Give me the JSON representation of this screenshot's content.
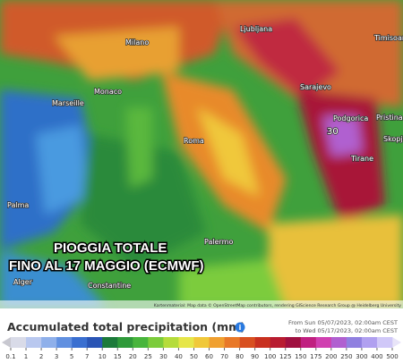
{
  "map": {
    "cities": [
      {
        "label": "Milano"
      },
      {
        "label": "Monaco"
      },
      {
        "label": "Marseille"
      },
      {
        "label": "Roma"
      },
      {
        "label": "Palermo"
      },
      {
        "label": "Palma"
      },
      {
        "label": "Alger"
      },
      {
        "label": "Constantine"
      },
      {
        "label": "Ljubljana"
      },
      {
        "label": "Sarajevo"
      },
      {
        "label": "Podgorica"
      },
      {
        "label": "Tirane"
      },
      {
        "label": "Pristina"
      },
      {
        "label": "Skopje"
      },
      {
        "label": "Timisoara"
      }
    ],
    "peak_label": "30",
    "overlay_line1": "PIOGGIA TOTALE",
    "overlay_line2": "FINO AL 17 MAGGIO (ECMWF)",
    "attribution": "Kartenmaterial: Map data © OpenStreetMap contributors, rendering GIScience Research Group @ Heidelberg University"
  },
  "legend": {
    "title": "Accumulated total precipitation (mm)",
    "from": "From Sun 05/07/2023, 02:00am CEST",
    "to": "to Wed 05/17/2023, 02:00am CEST",
    "ticks": [
      0.1,
      1,
      2,
      3,
      5,
      7,
      10,
      15,
      20,
      25,
      30,
      40,
      50,
      60,
      70,
      80,
      90,
      100,
      125,
      150,
      175,
      200,
      250,
      300,
      400,
      500
    ],
    "colors": [
      "#d9dbe8",
      "#b9c8ef",
      "#8fb0ea",
      "#6190e0",
      "#3a6fd0",
      "#2a55b5",
      "#1c7a3a",
      "#2f9a3a",
      "#48b53c",
      "#7ccc3c",
      "#b5dc3c",
      "#e6e64a",
      "#f0c83a",
      "#f0a030",
      "#e87828",
      "#d85020",
      "#c83020",
      "#b81c30",
      "#a01040",
      "#c02080",
      "#d040b0",
      "#b060d0",
      "#9080e0",
      "#b0a0f0",
      "#d0c8f8"
    ]
  }
}
